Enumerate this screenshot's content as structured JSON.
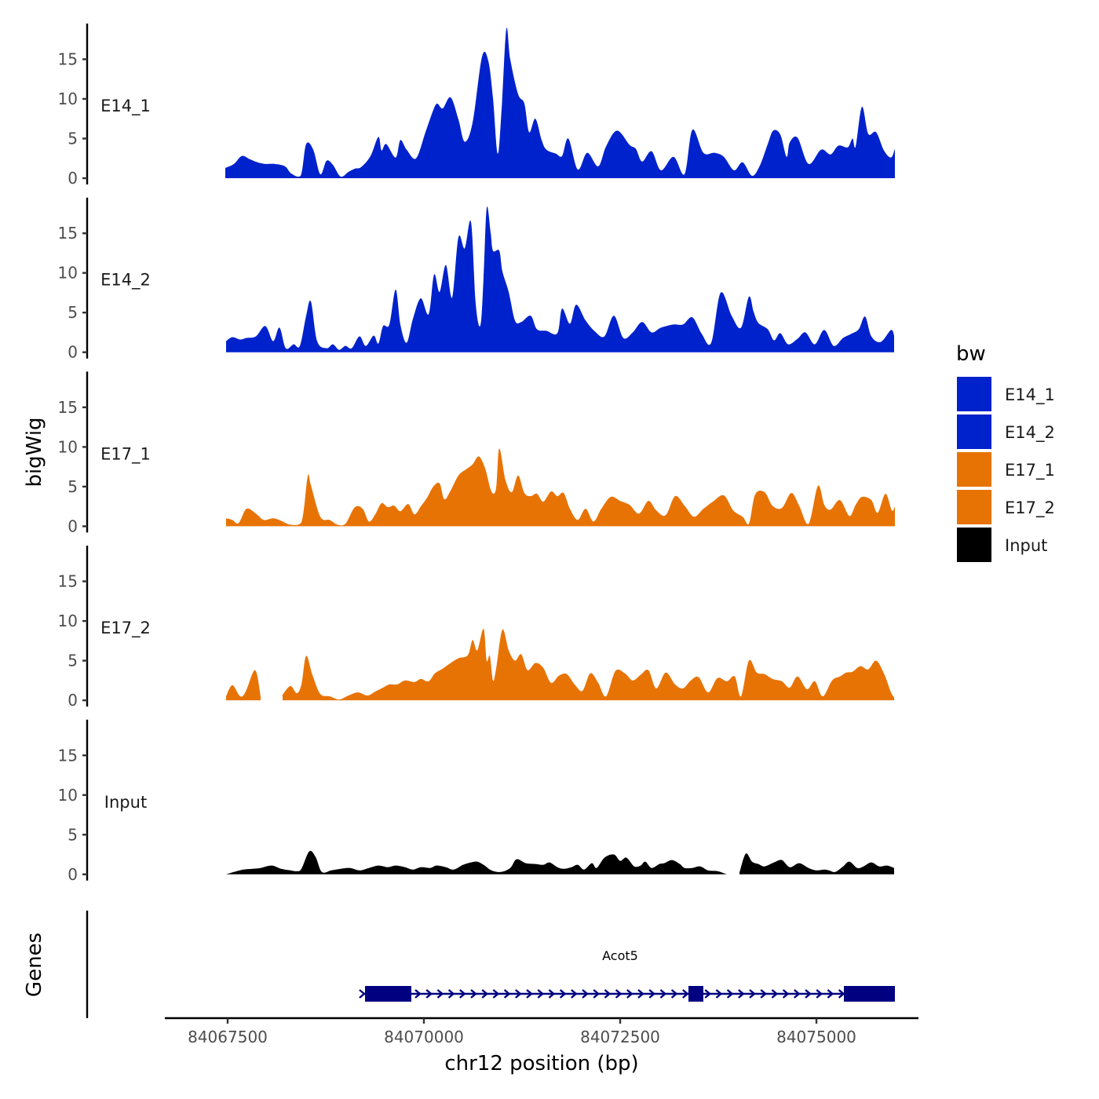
{
  "chart_data": {
    "type": "area",
    "xlabel": "chr12 position (bp)",
    "ylabel_tracks": "bigWig",
    "ylabel_genes": "Genes",
    "xlim": [
      84066700,
      84076300
    ],
    "x_ticks": [
      84067500,
      84070000,
      84072500,
      84075000
    ],
    "x_tick_labels": [
      "84067500",
      "84070000",
      "84072500",
      "84075000"
    ],
    "ylim": [
      0,
      19.5
    ],
    "y_ticks": [
      0,
      5,
      10,
      15
    ],
    "y_tick_labels": [
      "0",
      "5",
      "10",
      "15"
    ],
    "legend": {
      "title": "bw",
      "position": "right",
      "entries": [
        {
          "label": "E14_1",
          "color": "#0022CC"
        },
        {
          "label": "E14_2",
          "color": "#0022CC"
        },
        {
          "label": "E17_1",
          "color": "#E87305"
        },
        {
          "label": "E17_2",
          "color": "#E87305"
        },
        {
          "label": "Input",
          "color": "#000000"
        }
      ]
    },
    "series": [
      {
        "name": "E14_1",
        "color": "#0022CC",
        "x": [
          84067470,
          84067580,
          84067680,
          84067780,
          84067880,
          84067980,
          84068100,
          84068230,
          84068310,
          84068430,
          84068500,
          84068590,
          84068680,
          84068760,
          84068840,
          84068940,
          84069040,
          84069120,
          84069200,
          84069320,
          84069420,
          84069460,
          84069520,
          84069640,
          84069700,
          84069780,
          84069900,
          84070020,
          84070120,
          84070170,
          84070240,
          84070340,
          84070440,
          84070520,
          84070620,
          84070740,
          84070820,
          84070880,
          84070940,
          84070990,
          84071050,
          84071100,
          84071200,
          84071280,
          84071340,
          84071420,
          84071500,
          84071560,
          84071680,
          84071760,
          84071840,
          84071960,
          84072080,
          84072220,
          84072320,
          84072460,
          84072620,
          84072700,
          84072780,
          84072900,
          84073020,
          84073180,
          84073320,
          84073420,
          84073560,
          84073700,
          84073820,
          84073950,
          84074060,
          84074180,
          84074280,
          84074380,
          84074450,
          84074540,
          84074620,
          84074660,
          84074760,
          84074900,
          84075060,
          84075180,
          84075280,
          84075400,
          84075460,
          84075500,
          84075580,
          84075660,
          84075760,
          84075860,
          84075950,
          84076000
        ],
        "values": [
          1.3,
          1.8,
          2.8,
          2.4,
          2.0,
          1.8,
          1.8,
          1.5,
          0.6,
          0.3,
          4.3,
          3.6,
          0.5,
          2.2,
          1.7,
          0.2,
          0.8,
          1.2,
          1.4,
          2.8,
          5.2,
          3.5,
          4.3,
          2.6,
          4.8,
          3.6,
          2.5,
          5.8,
          8.6,
          9.4,
          8.8,
          10.2,
          7.4,
          4.6,
          7.0,
          15.3,
          14.8,
          10.1,
          3.1,
          8.7,
          18.8,
          15.0,
          10.6,
          9.4,
          5.8,
          7.5,
          4.8,
          3.6,
          3.1,
          2.8,
          5.0,
          1.1,
          3.2,
          1.5,
          4.0,
          6.0,
          4.2,
          3.7,
          2.1,
          3.4,
          1.0,
          2.7,
          0.5,
          6.1,
          3.2,
          3.2,
          2.7,
          1.0,
          2.0,
          0.3,
          1.6,
          4.3,
          6.0,
          5.5,
          2.7,
          4.5,
          5.1,
          1.8,
          3.6,
          3.0,
          4.1,
          3.9,
          5.0,
          4.0,
          9.0,
          5.6,
          5.8,
          3.5,
          2.6,
          3.7
        ]
      },
      {
        "name": "E14_2",
        "color": "#0022CC",
        "x": [
          84067480,
          84067560,
          84067660,
          84067740,
          84067860,
          84067980,
          84068080,
          84068160,
          84068240,
          84068340,
          84068420,
          84068500,
          84068560,
          84068640,
          84068760,
          84068840,
          84068920,
          84069000,
          84069080,
          84069180,
          84069260,
          84069360,
          84069420,
          84069480,
          84069560,
          84069640,
          84069700,
          84069780,
          84069860,
          84069960,
          84070060,
          84070130,
          84070200,
          84070280,
          84070360,
          84070440,
          84070520,
          84070600,
          84070660,
          84070720,
          84070760,
          84070800,
          84070850,
          84070880,
          84070960,
          84071000,
          84071080,
          84071160,
          84071240,
          84071360,
          84071440,
          84071560,
          84071700,
          84071760,
          84071860,
          84071940,
          84072060,
          84072180,
          84072300,
          84072420,
          84072540,
          84072660,
          84072780,
          84072900,
          84073020,
          84073180,
          84073300,
          84073420,
          84073540,
          84073660,
          84073780,
          84073920,
          84074040,
          84074140,
          84074200,
          84074260,
          84074380,
          84074460,
          84074540,
          84074640,
          84074760,
          84074860,
          84074980,
          84075100,
          84075220,
          84075340,
          84075440,
          84075540,
          84075620,
          84075700,
          84075820,
          84075950,
          84075990
        ],
        "values": [
          1.4,
          1.9,
          1.6,
          1.8,
          2.0,
          3.3,
          1.4,
          3.1,
          0.5,
          1.0,
          0.8,
          4.6,
          6.4,
          1.4,
          0.5,
          1.0,
          0.3,
          0.8,
          0.5,
          2.0,
          0.8,
          2.1,
          1.1,
          3.3,
          3.5,
          7.9,
          3.5,
          1.2,
          4.2,
          6.8,
          4.8,
          9.8,
          7.6,
          11.0,
          6.9,
          14.5,
          13.1,
          16.4,
          6.1,
          3.4,
          9.4,
          18.2,
          15.1,
          12.8,
          12.8,
          10.2,
          7.6,
          4.0,
          3.8,
          4.6,
          2.9,
          2.7,
          2.4,
          5.5,
          3.6,
          6.0,
          4.0,
          2.6,
          2.0,
          4.6,
          1.8,
          2.5,
          3.8,
          2.5,
          3.1,
          3.5,
          3.5,
          4.4,
          2.3,
          1.2,
          7.5,
          4.6,
          3.1,
          7.0,
          5.1,
          3.7,
          2.9,
          1.5,
          2.4,
          1.0,
          1.7,
          2.5,
          1.0,
          2.8,
          0.8,
          1.8,
          2.3,
          2.9,
          4.5,
          2.0,
          1.3,
          2.8,
          2.1
        ]
      },
      {
        "name": "E17_1",
        "color": "#E87305",
        "x": [
          84067480,
          84067560,
          84067640,
          84067740,
          84067860,
          84067960,
          84068080,
          84068180,
          84068300,
          84068440,
          84068520,
          84068560,
          84068680,
          84068800,
          84068900,
          84069000,
          84069120,
          84069220,
          84069300,
          84069380,
          84069460,
          84069540,
          84069620,
          84069700,
          84069800,
          84069880,
          84069960,
          84070040,
          84070120,
          84070200,
          84070260,
          84070340,
          84070440,
          84070540,
          84070620,
          84070700,
          84070780,
          84070860,
          84070920,
          84070960,
          84071040,
          84071120,
          84071200,
          84071280,
          84071360,
          84071440,
          84071520,
          84071620,
          84071700,
          84071780,
          84071860,
          84071960,
          84072060,
          84072160,
          84072260,
          84072380,
          84072500,
          84072620,
          84072740,
          84072860,
          84072960,
          84073080,
          84073200,
          84073320,
          84073440,
          84073560,
          84073680,
          84073820,
          84073940,
          84074060,
          84074140,
          84074220,
          84074340,
          84074440,
          84074560,
          84074680,
          84074780,
          84074900,
          84075020,
          84075100,
          84075180,
          84075300,
          84075420,
          84075500,
          84075580,
          84075700,
          84075780,
          84075880,
          84075960,
          84076000
        ],
        "values": [
          1.0,
          0.8,
          0.4,
          2.2,
          1.6,
          0.8,
          1.0,
          0.7,
          0.2,
          0.5,
          6.3,
          5.2,
          1.2,
          0.8,
          0.2,
          0.3,
          2.4,
          2.2,
          0.6,
          1.5,
          2.9,
          2.4,
          2.6,
          1.9,
          2.8,
          1.5,
          2.5,
          3.6,
          5.0,
          5.4,
          3.4,
          4.5,
          6.4,
          7.2,
          7.8,
          8.8,
          7.3,
          4.4,
          4.8,
          9.8,
          5.8,
          4.3,
          6.4,
          4.2,
          3.8,
          4.1,
          3.1,
          4.4,
          3.8,
          4.2,
          2.2,
          0.8,
          2.2,
          0.6,
          2.2,
          3.7,
          3.2,
          2.7,
          1.6,
          3.2,
          2.0,
          1.4,
          3.8,
          2.6,
          1.2,
          2.2,
          3.1,
          3.9,
          2.0,
          1.2,
          0.3,
          4.0,
          4.3,
          2.6,
          2.3,
          4.2,
          2.6,
          0.3,
          5.1,
          2.7,
          2.1,
          3.3,
          1.3,
          2.7,
          3.7,
          3.3,
          1.7,
          4.1,
          2.0,
          2.5
        ]
      },
      {
        "name": "E17_2",
        "color": "#E87305",
        "x": [
          84067480,
          84067560,
          84067660,
          84067730,
          84067850,
          84067920,
          84068000,
          84068100,
          84068200,
          84068300,
          84068380,
          84068440,
          84068500,
          84068580,
          84068680,
          84068800,
          84068920,
          84069040,
          84069160,
          84069280,
          84069380,
          84069480,
          84069560,
          84069660,
          84069760,
          84069880,
          84069960,
          84070060,
          84070140,
          84070240,
          84070340,
          84070440,
          84070560,
          84070620,
          84070680,
          84070760,
          84070800,
          84070840,
          84070880,
          84070920,
          84071000,
          84071080,
          84071160,
          84071240,
          84071320,
          84071420,
          84071520,
          84071620,
          84071720,
          84071820,
          84071920,
          84072020,
          84072120,
          84072220,
          84072320,
          84072440,
          84072560,
          84072660,
          84072760,
          84072860,
          84072960,
          84073080,
          84073200,
          84073300,
          84073400,
          84073500,
          84073620,
          84073740,
          84073860,
          84073960,
          84074040,
          84074140,
          84074240,
          84074340,
          84074440,
          84074560,
          84074660,
          84074760,
          84074880,
          84074980,
          84075080,
          84075200,
          84075300,
          84075380,
          84075460,
          84075560,
          84075660,
          84075760,
          84075860,
          84075950,
          84075990
        ],
        "values": [
          0.5,
          1.9,
          0.5,
          1.1,
          3.8,
          0.5,
          null,
          null,
          0.7,
          1.8,
          0.9,
          2.0,
          5.6,
          3.2,
          0.8,
          0.5,
          0.1,
          0.6,
          1.0,
          0.6,
          1.1,
          1.6,
          2.0,
          2.0,
          2.5,
          2.3,
          2.7,
          2.4,
          3.4,
          4.0,
          4.7,
          5.3,
          5.7,
          7.6,
          6.3,
          9.0,
          5.0,
          5.6,
          2.5,
          4.0,
          8.9,
          6.3,
          5.0,
          5.8,
          3.8,
          4.7,
          4.1,
          2.2,
          3.1,
          3.3,
          2.0,
          1.2,
          3.4,
          2.2,
          0.5,
          3.7,
          3.4,
          2.5,
          3.2,
          3.8,
          1.5,
          3.5,
          2.0,
          1.5,
          2.5,
          2.9,
          1.0,
          2.8,
          2.4,
          3.0,
          0.5,
          5.0,
          3.5,
          3.3,
          2.7,
          2.4,
          1.6,
          3.0,
          1.4,
          2.4,
          0.5,
          2.5,
          3.0,
          3.5,
          3.6,
          4.3,
          3.9,
          5.0,
          3.4,
          1.0,
          0.4
        ]
      },
      {
        "name": "Input",
        "color": "#000000",
        "x": [
          84067480,
          84067580,
          84067700,
          84067820,
          84067920,
          84068060,
          84068180,
          84068300,
          84068380,
          84068440,
          84068540,
          84068620,
          84068700,
          84068820,
          84068940,
          84069060,
          84069180,
          84069300,
          84069420,
          84069540,
          84069640,
          84069760,
          84069860,
          84069960,
          84070080,
          84070160,
          84070280,
          84070380,
          84070500,
          84070600,
          84070680,
          84070760,
          84070860,
          84070980,
          84071100,
          84071180,
          84071300,
          84071420,
          84071520,
          84071600,
          84071700,
          84071780,
          84071880,
          84071960,
          84072040,
          84072140,
          84072200,
          84072300,
          84072420,
          84072500,
          84072580,
          84072680,
          84072760,
          84072820,
          84072900,
          84073000,
          84073060,
          84073160,
          84073260,
          84073320,
          84073420,
          84073520,
          84073620,
          84073740,
          84073860,
          84073940,
          84074020,
          84074100,
          84074180,
          84074260,
          84074340,
          84074460,
          84074560,
          84074660,
          84074780,
          84074900,
          84075000,
          84075100,
          84075160,
          84075240,
          84075340,
          84075420,
          84075520,
          84075600,
          84075700,
          84075800,
          84075900,
          84075990
        ],
        "values": [
          0.0,
          0.3,
          0.6,
          0.7,
          0.8,
          1.1,
          0.7,
          0.5,
          0.4,
          0.7,
          2.9,
          2.2,
          0.3,
          0.5,
          0.7,
          0.8,
          0.5,
          0.8,
          1.1,
          0.9,
          1.1,
          0.9,
          0.6,
          0.9,
          0.8,
          1.1,
          0.9,
          0.6,
          1.2,
          1.5,
          1.6,
          1.2,
          0.5,
          0.3,
          0.8,
          1.9,
          1.4,
          1.3,
          1.2,
          1.5,
          0.9,
          0.7,
          0.9,
          1.2,
          0.6,
          1.4,
          0.8,
          2.1,
          2.5,
          1.7,
          2.1,
          1.0,
          1.1,
          1.6,
          0.8,
          1.3,
          1.4,
          1.8,
          1.3,
          0.8,
          0.8,
          1.0,
          0.5,
          0.4,
          0.0,
          null,
          0.2,
          2.6,
          1.6,
          1.3,
          1.0,
          1.5,
          1.8,
          0.9,
          1.4,
          0.8,
          0.5,
          0.6,
          0.5,
          0.3,
          1.0,
          1.6,
          0.8,
          1.0,
          1.5,
          1.0,
          1.1,
          0.8
        ]
      }
    ],
    "gene": {
      "name": "Acot5",
      "strand": "+",
      "color": "#000080",
      "start": 84069220,
      "end": 84076000,
      "exons": [
        {
          "start": 84069250,
          "end": 84069840
        },
        {
          "start": 84073370,
          "end": 84073560
        },
        {
          "start": 84075350,
          "end": 84076000
        }
      ]
    }
  }
}
